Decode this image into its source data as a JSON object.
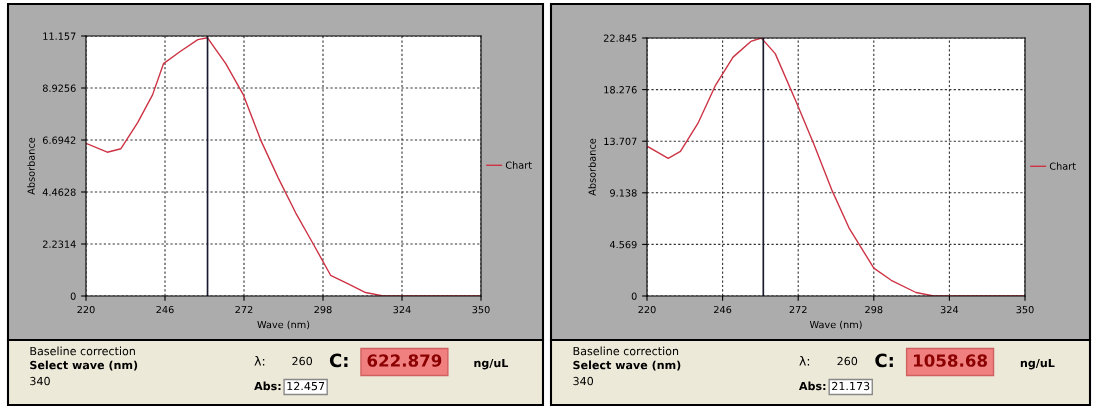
{
  "chart_data": [
    {
      "type": "line",
      "xlabel": "Wave (nm)",
      "ylabel": "Absorbance",
      "legend": "right",
      "grid": true,
      "line_style": "solid",
      "xlim": [
        220,
        350
      ],
      "xticks": [
        220,
        246,
        272,
        298,
        324,
        350
      ],
      "ylim": [
        0,
        11.157
      ],
      "yticks": [
        0,
        {
          "value": 2.2314,
          "label": "2.2314"
        },
        {
          "value": 4.4628,
          "label": "4.4628"
        },
        {
          "value": 6.6942,
          "label": "6.6942"
        },
        {
          "value": 8.9256,
          "label": "8.9256"
        },
        11.157
      ],
      "ref_lines": [
        {
          "axis": "x",
          "value": 260,
          "color": "#1a1a2e"
        }
      ],
      "series": [
        {
          "name": "Chart",
          "color": "#cc3344",
          "x": [
            220,
            227,
            231.5,
            237,
            241.9,
            245.5,
            251,
            256.8,
            260,
            266,
            271.8,
            277.5,
            283.3,
            289,
            294.8,
            300.5,
            306.3,
            312,
            317.8,
            330,
            350
          ],
          "values": [
            6.55,
            6.17,
            6.32,
            7.44,
            8.63,
            9.97,
            10.49,
            11.0,
            11.08,
            9.97,
            8.63,
            6.69,
            5.06,
            3.57,
            2.23,
            0.89,
            0.52,
            0.15,
            0,
            0,
            0
          ]
        }
      ],
      "annotations": [
        "Baseline correction",
        "Select wave (nm)",
        "340",
        "λ:",
        "260",
        "C:",
        "622.879",
        "ng/uL",
        "Abs:",
        "12.457"
      ]
    },
    {
      "type": "line",
      "xlabel": "Wave (nm)",
      "ylabel": "Absorbance",
      "legend": "right",
      "grid": true,
      "line_style": "solid",
      "xlim": [
        220,
        350
      ],
      "xticks": [
        220,
        246,
        272,
        298,
        324,
        350
      ],
      "ylim": [
        0,
        22.845
      ],
      "yticks": [
        0,
        4.569,
        9.138,
        13.707,
        18.276,
        22.845
      ],
      "ref_lines": [
        {
          "axis": "x",
          "value": 260,
          "color": "#1a1a2e"
        }
      ],
      "series": [
        {
          "name": "Chart",
          "color": "#cc3344",
          "x": [
            220,
            227.3,
            231.5,
            237.5,
            243.6,
            249.6,
            255.7,
            259.3,
            264.1,
            271.4,
            277.4,
            283.5,
            289.5,
            298,
            304,
            312.5,
            318.6,
            330,
            350
          ],
          "values": [
            13.27,
            12.19,
            12.81,
            15.28,
            18.68,
            21.15,
            22.54,
            22.845,
            21.46,
            17.13,
            13.43,
            9.42,
            6.02,
            2.47,
            1.39,
            0.31,
            0,
            0,
            0
          ]
        }
      ],
      "annotations": [
        "Baseline correction",
        "Select wave (nm)",
        "340",
        "λ:",
        "260",
        "C:",
        "1058.68",
        "ng/uL",
        "Abs:",
        "21.173"
      ]
    }
  ]
}
